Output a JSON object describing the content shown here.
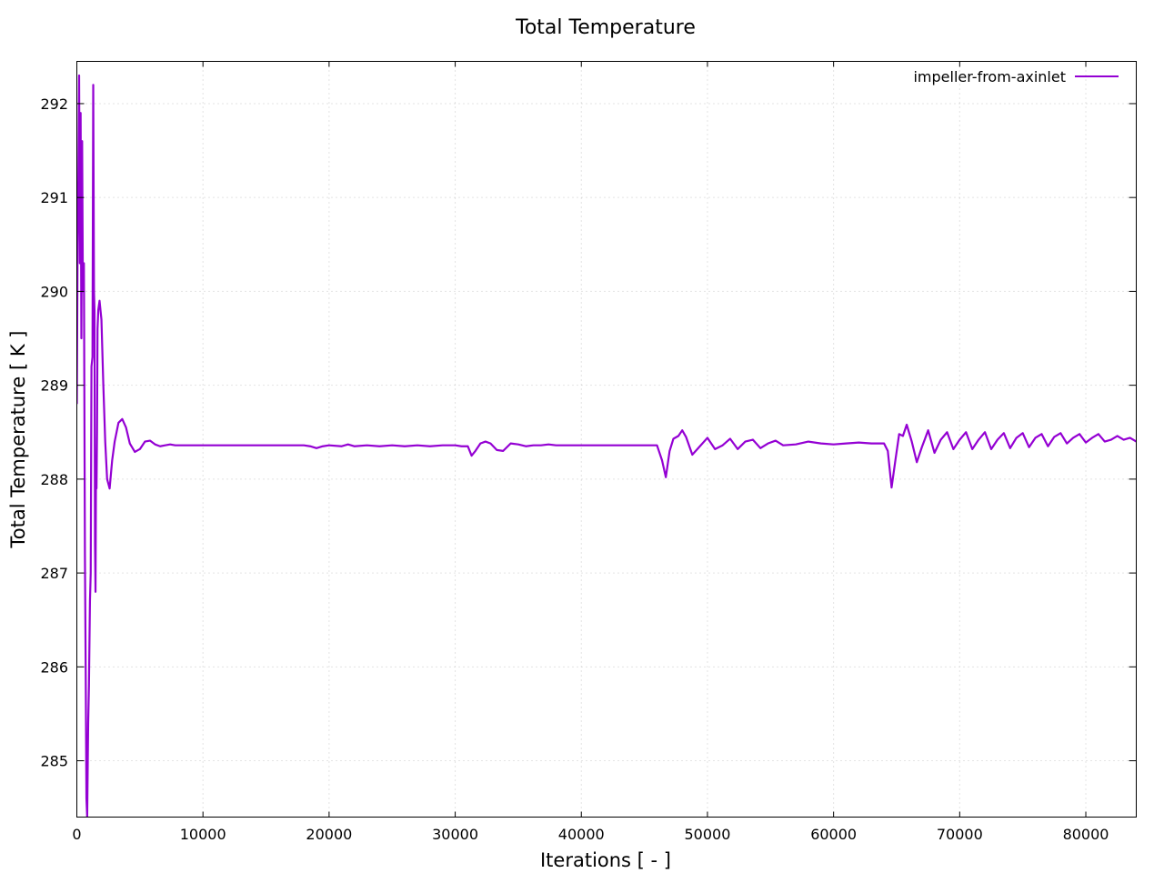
{
  "chart_data": {
    "type": "line",
    "title": "Total Temperature",
    "xlabel": "Iterations [ - ]",
    "ylabel": "Total Temperature [ K ]",
    "xlim": [
      0,
      84000
    ],
    "ylim": [
      284.4,
      292.45
    ],
    "xticks": [
      0,
      10000,
      20000,
      30000,
      40000,
      50000,
      60000,
      70000,
      80000
    ],
    "yticks": [
      285,
      286,
      287,
      288,
      289,
      290,
      291,
      292
    ],
    "grid": true,
    "legend_position": "top-right",
    "series": [
      {
        "name": "impeller-from-axinlet",
        "color": "#9400d3",
        "x": [
          0,
          60,
          120,
          180,
          240,
          300,
          360,
          420,
          480,
          560,
          640,
          700,
          760,
          820,
          900,
          960,
          1040,
          1100,
          1160,
          1240,
          1300,
          1360,
          1400,
          1440,
          1480,
          1520,
          1560,
          1600,
          1640,
          1700,
          1800,
          1950,
          2100,
          2250,
          2400,
          2600,
          2800,
          3000,
          3300,
          3600,
          3900,
          4200,
          4600,
          5000,
          5400,
          5800,
          6200,
          6600,
          7000,
          7400,
          7800,
          8200,
          8600,
          9000,
          10000,
          11000,
          12000,
          13000,
          14000,
          15000,
          16000,
          17000,
          18000,
          18500,
          19000,
          19500,
          20000,
          21000,
          21500,
          22000,
          23000,
          24000,
          25000,
          26000,
          27000,
          28000,
          29000,
          30000,
          30500,
          31000,
          31300,
          31600,
          32000,
          32400,
          32800,
          33300,
          33800,
          34400,
          35000,
          35600,
          36200,
          36800,
          37400,
          38000,
          38600,
          39200,
          40000,
          41000,
          42000,
          43000,
          44000,
          45000,
          46000,
          46400,
          46700,
          47000,
          47300,
          47700,
          48000,
          48300,
          48800,
          49400,
          50000,
          50600,
          51200,
          51800,
          52400,
          53000,
          53600,
          54200,
          54800,
          55400,
          56000,
          57000,
          58000,
          59000,
          60000,
          61000,
          62000,
          63000,
          64000,
          64300,
          64600,
          64900,
          65200,
          65500,
          65800,
          66200,
          66600,
          67000,
          67500,
          68000,
          68500,
          69000,
          69500,
          70000,
          70500,
          71000,
          71500,
          72000,
          72500,
          73000,
          73500,
          74000,
          74500,
          75000,
          75500,
          76000,
          76500,
          77000,
          77500,
          78000,
          78500,
          79000,
          79500,
          80000,
          80500,
          81000,
          81500,
          82000,
          82500,
          83000,
          83500,
          84000
        ],
        "y": [
          288.8,
          290.5,
          291.2,
          292.3,
          290.3,
          291.9,
          289.5,
          291.6,
          290.0,
          290.3,
          287.2,
          286.0,
          284.6,
          284.4,
          285.4,
          285.8,
          286.7,
          287.0,
          289.2,
          289.3,
          292.2,
          290.0,
          289.8,
          287.3,
          286.8,
          288.1,
          287.9,
          288.5,
          289.6,
          289.8,
          289.9,
          289.7,
          289.0,
          288.4,
          288.0,
          287.9,
          288.2,
          288.4,
          288.6,
          288.64,
          288.55,
          288.38,
          288.29,
          288.32,
          288.4,
          288.41,
          288.37,
          288.35,
          288.36,
          288.37,
          288.36,
          288.36,
          288.36,
          288.36,
          288.36,
          288.36,
          288.36,
          288.36,
          288.36,
          288.36,
          288.36,
          288.36,
          288.36,
          288.35,
          288.33,
          288.35,
          288.36,
          288.35,
          288.37,
          288.35,
          288.36,
          288.35,
          288.36,
          288.35,
          288.36,
          288.35,
          288.36,
          288.36,
          288.35,
          288.35,
          288.25,
          288.3,
          288.38,
          288.4,
          288.38,
          288.31,
          288.3,
          288.38,
          288.37,
          288.35,
          288.36,
          288.36,
          288.37,
          288.36,
          288.36,
          288.36,
          288.36,
          288.36,
          288.36,
          288.36,
          288.36,
          288.36,
          288.36,
          288.2,
          288.02,
          288.3,
          288.43,
          288.46,
          288.52,
          288.45,
          288.26,
          288.35,
          288.44,
          288.32,
          288.36,
          288.43,
          288.32,
          288.4,
          288.42,
          288.33,
          288.38,
          288.41,
          288.36,
          288.37,
          288.4,
          288.38,
          288.37,
          288.38,
          288.39,
          288.38,
          288.38,
          288.3,
          287.91,
          288.2,
          288.48,
          288.46,
          288.58,
          288.4,
          288.18,
          288.34,
          288.52,
          288.28,
          288.42,
          288.5,
          288.32,
          288.42,
          288.5,
          288.32,
          288.42,
          288.5,
          288.32,
          288.42,
          288.49,
          288.33,
          288.44,
          288.49,
          288.34,
          288.44,
          288.48,
          288.35,
          288.45,
          288.49,
          288.38,
          288.44,
          288.48,
          288.39,
          288.44,
          288.48,
          288.4,
          288.42,
          288.46,
          288.42,
          288.44,
          288.4
        ]
      }
    ]
  }
}
